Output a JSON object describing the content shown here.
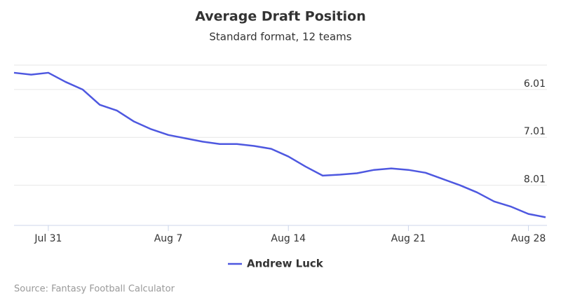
{
  "chart_data": {
    "type": "line",
    "title": "Average Draft Position",
    "subtitle": "Standard format, 12 teams",
    "source": "Source: Fantasy Football Calculator",
    "x": [
      "Jul 29",
      "Jul 30",
      "Jul 31",
      "Aug 1",
      "Aug 2",
      "Aug 3",
      "Aug 4",
      "Aug 5",
      "Aug 6",
      "Aug 7",
      "Aug 8",
      "Aug 9",
      "Aug 10",
      "Aug 11",
      "Aug 12",
      "Aug 13",
      "Aug 14",
      "Aug 15",
      "Aug 16",
      "Aug 17",
      "Aug 18",
      "Aug 19",
      "Aug 20",
      "Aug 21",
      "Aug 22",
      "Aug 23",
      "Aug 24",
      "Aug 25",
      "Aug 26",
      "Aug 27",
      "Aug 28",
      "Aug 29"
    ],
    "xticks": [
      "Jul 31",
      "Aug 7",
      "Aug 14",
      "Aug 21",
      "Aug 28"
    ],
    "series": [
      {
        "name": "Andrew Luck",
        "color": "#4e58e0",
        "values": [
          5.66,
          5.7,
          5.66,
          5.85,
          6.01,
          6.33,
          6.45,
          6.68,
          6.84,
          6.96,
          7.03,
          7.1,
          7.15,
          7.15,
          7.19,
          7.25,
          7.41,
          7.62,
          7.81,
          7.79,
          7.76,
          7.69,
          7.66,
          7.69,
          7.75,
          7.88,
          8.01,
          8.16,
          8.35,
          8.46,
          8.61,
          8.68
        ]
      }
    ],
    "ylim": [
      5.5,
      8.85
    ],
    "yreversed": true,
    "yticks": [
      6.01,
      7.01,
      8.01
    ],
    "grid": true,
    "legend": "bottom"
  }
}
